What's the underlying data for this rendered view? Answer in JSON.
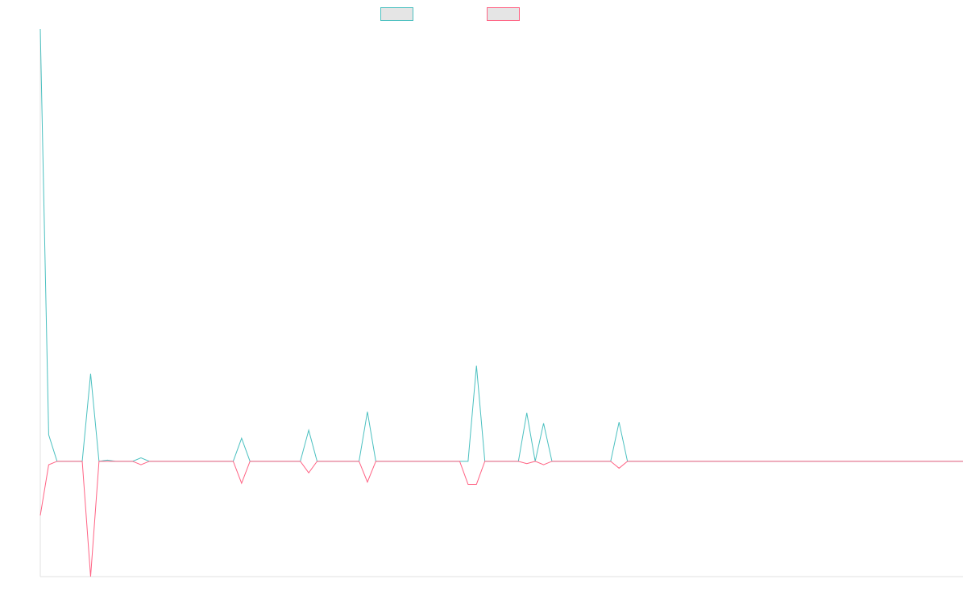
{
  "chart_data": {
    "type": "line",
    "title": "",
    "xlabel": "",
    "ylabel": "",
    "grid": false,
    "legend_position": "top-center",
    "ylim": [
      -10,
      37.5
    ],
    "x_count": 111,
    "series": [
      {
        "color": "#4BC0C0",
        "legend_fill": "#E5E5E5",
        "values": [
          37.5,
          2.3,
          0,
          0,
          0,
          0,
          7.6,
          0,
          0.1,
          0,
          0,
          0,
          0.3,
          0,
          0,
          0,
          0,
          0,
          0,
          0,
          0,
          0,
          0,
          0,
          2,
          0,
          0,
          0,
          0,
          0,
          0,
          0,
          2.7,
          0,
          0,
          0,
          0,
          0,
          0,
          4.3,
          0,
          0,
          0,
          0,
          0,
          0,
          0,
          0,
          0,
          0,
          0,
          0,
          8.3,
          0,
          0,
          0,
          0,
          0,
          4.2,
          0,
          3.3,
          0,
          0,
          0,
          0,
          0,
          0,
          0,
          0,
          3.4,
          0,
          0,
          0,
          0,
          0,
          0,
          0,
          0,
          0,
          0,
          0,
          0,
          0,
          0,
          0,
          0,
          0,
          0,
          0,
          0,
          0,
          0,
          0,
          0,
          0,
          0,
          0,
          0,
          0,
          0,
          0,
          0,
          0,
          0,
          0,
          0,
          0,
          0,
          0,
          0,
          0
        ]
      },
      {
        "color": "#FF6384",
        "legend_fill": "#E5E5E5",
        "values": [
          -4.7,
          -0.3,
          0,
          0,
          0,
          0,
          -10,
          0,
          0,
          0,
          0,
          0,
          -0.3,
          0,
          0,
          0,
          0,
          0,
          0,
          0,
          0,
          0,
          0,
          0,
          -1.9,
          0,
          0,
          0,
          0,
          0,
          0,
          0,
          -1,
          0,
          0,
          0,
          0,
          0,
          0,
          -1.8,
          0,
          0,
          0,
          0,
          0,
          0,
          0,
          0,
          0,
          0,
          0,
          -2,
          -2,
          0,
          0,
          0,
          0,
          0,
          -0.2,
          0,
          -0.3,
          0,
          0,
          0,
          0,
          0,
          0,
          0,
          0,
          -0.6,
          0,
          0,
          0,
          0,
          0,
          0,
          0,
          0,
          0,
          0,
          0,
          0,
          0,
          0,
          0,
          0,
          0,
          0,
          0,
          0,
          0,
          0,
          0,
          0,
          0,
          0,
          0,
          0,
          0,
          0,
          0,
          0,
          0,
          0,
          0,
          0,
          0,
          0,
          0,
          0,
          0
        ]
      }
    ]
  }
}
